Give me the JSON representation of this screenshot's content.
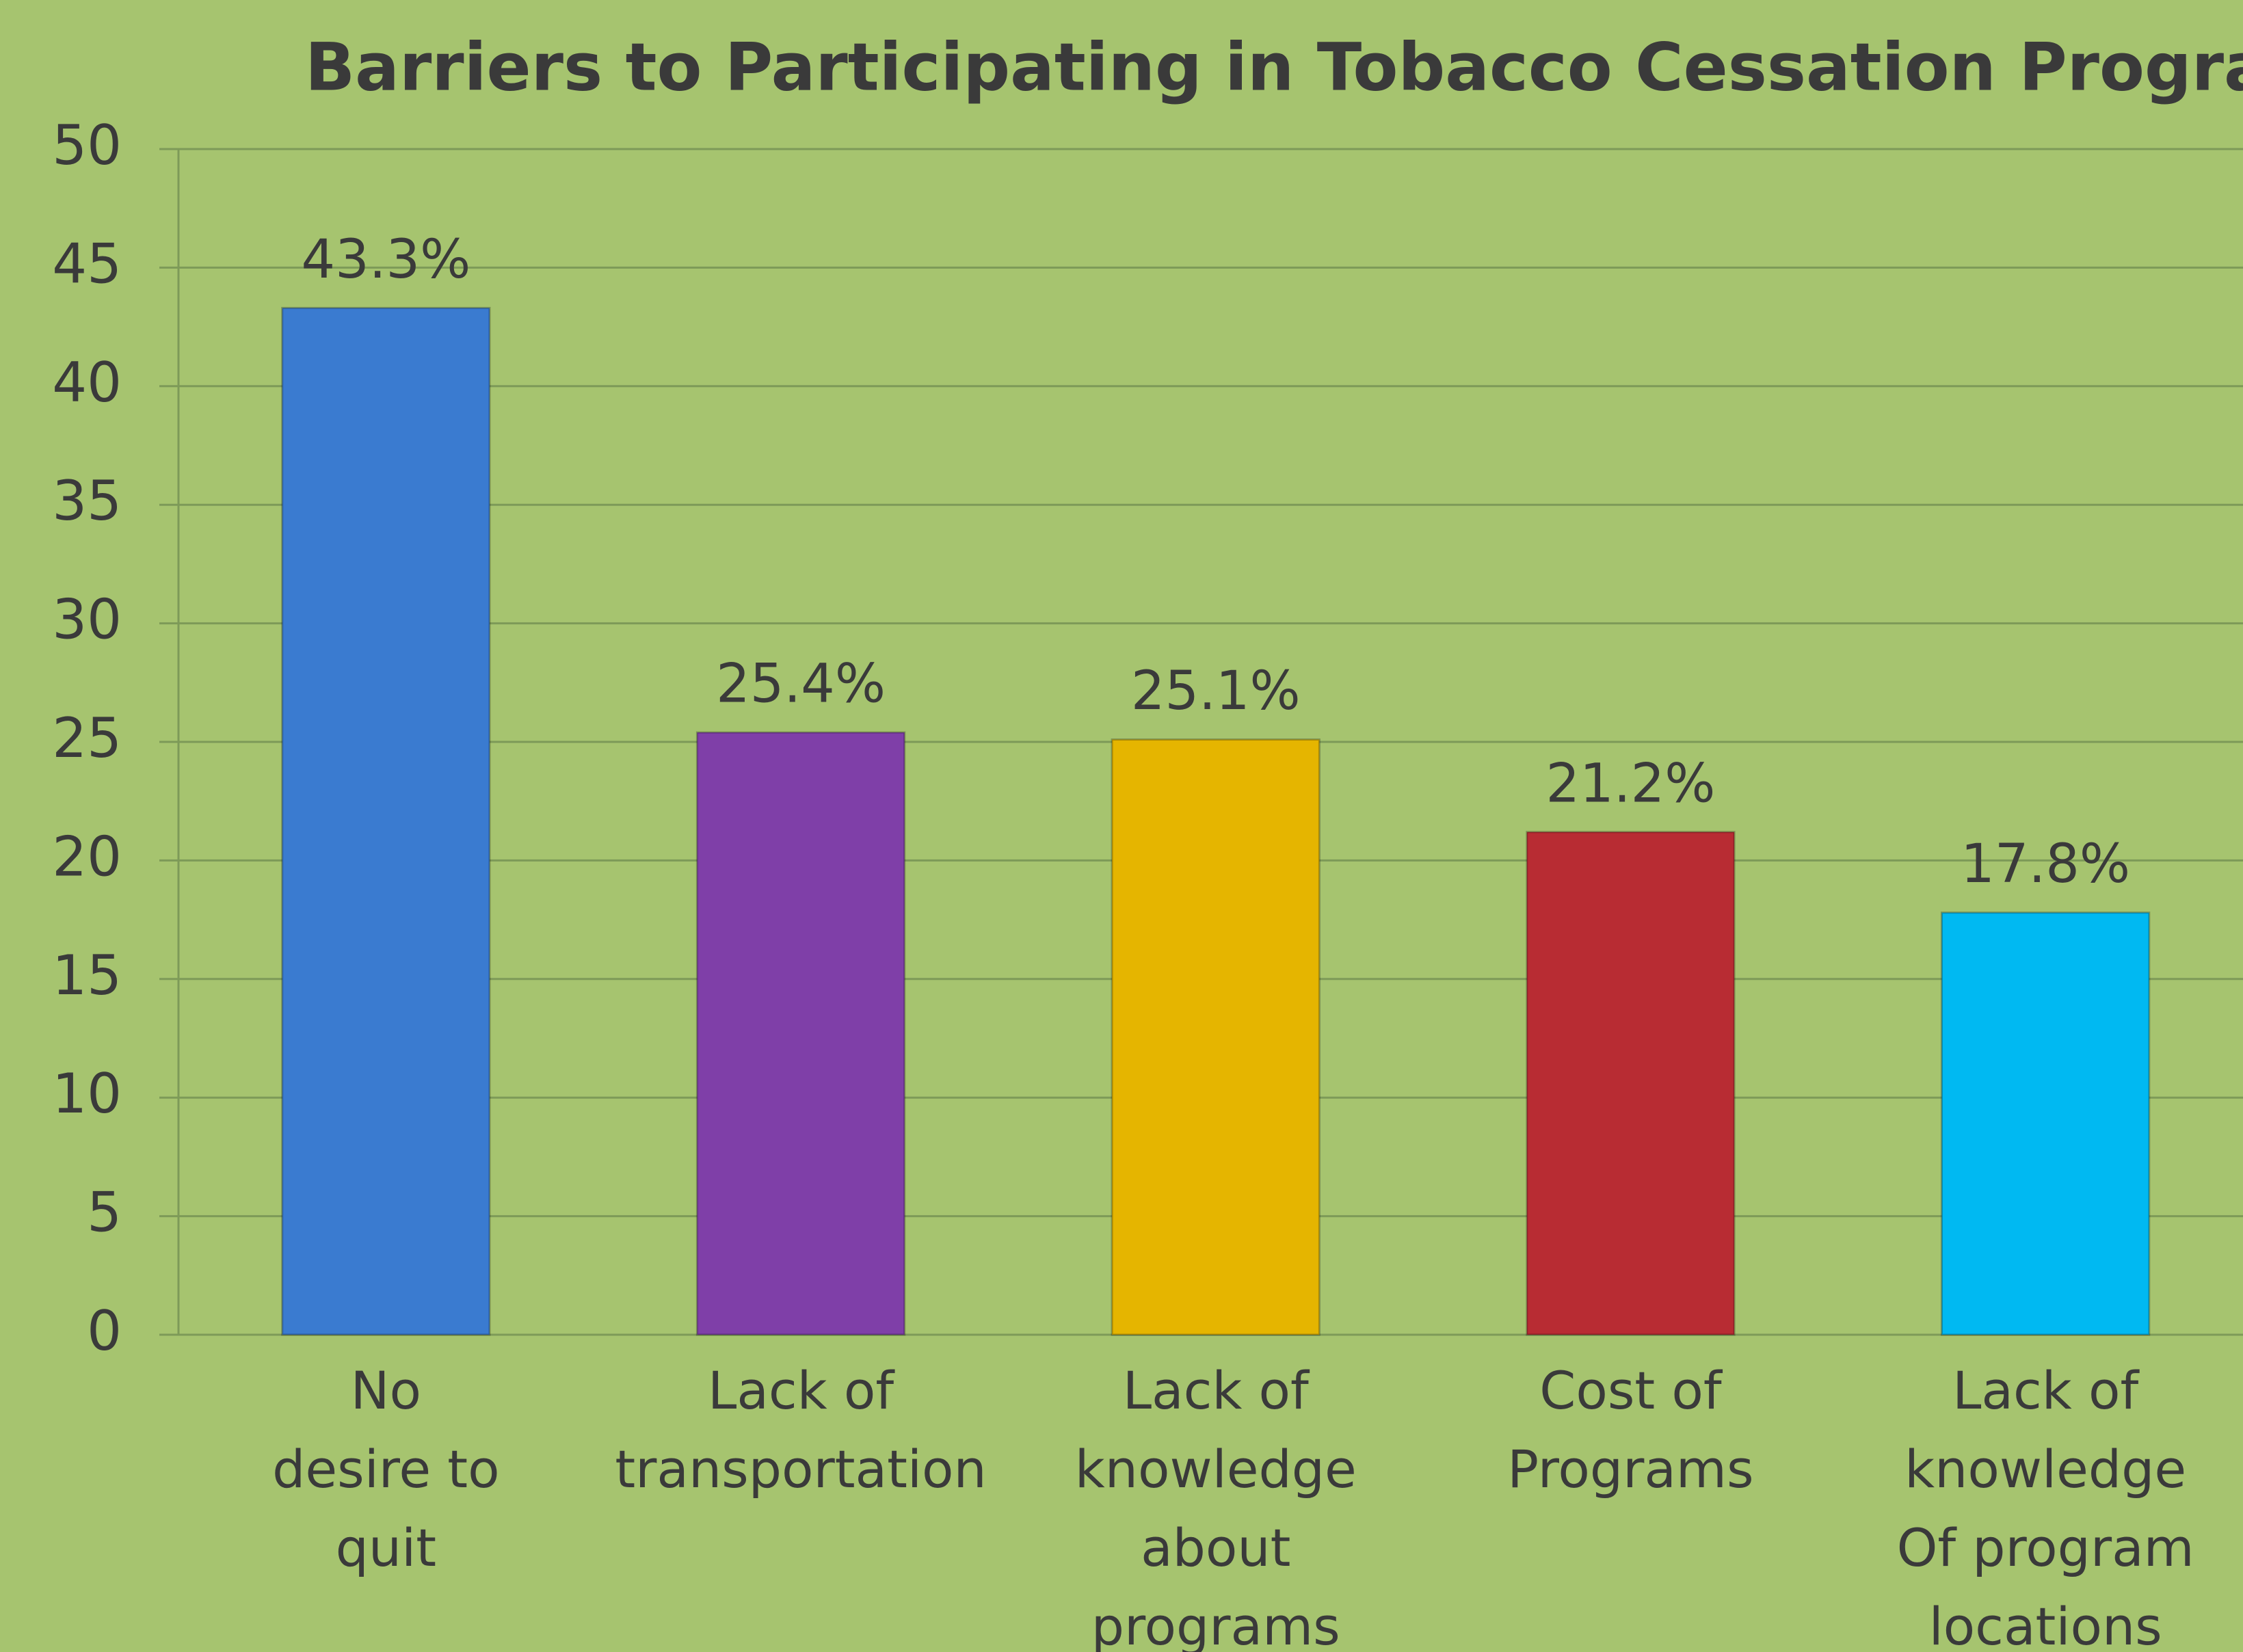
{
  "chart_data": {
    "type": "bar",
    "title": "Barriers to Participating in Tobacco Cessation Programs",
    "categories": [
      "No\ndesire to\nquit",
      "Lack of\ntransportation",
      "Lack of\nknowledge\nabout\nprograms",
      "Cost of\nPrograms",
      "Lack of\nknowledge\nOf program\nlocations"
    ],
    "values": [
      43.3,
      25.4,
      25.1,
      21.2,
      17.8
    ],
    "value_labels": [
      "43.3%",
      "25.4%",
      "25.1%",
      "21.2%",
      "17.8%"
    ],
    "colors": [
      "#3a7bd0",
      "#7f3fa8",
      "#e5b500",
      "#b82c33",
      "#00b9f2"
    ],
    "ylim": [
      0,
      50
    ],
    "yticks": [
      0,
      5,
      10,
      15,
      20,
      25,
      30,
      35,
      40,
      45,
      50
    ],
    "grid": true
  }
}
